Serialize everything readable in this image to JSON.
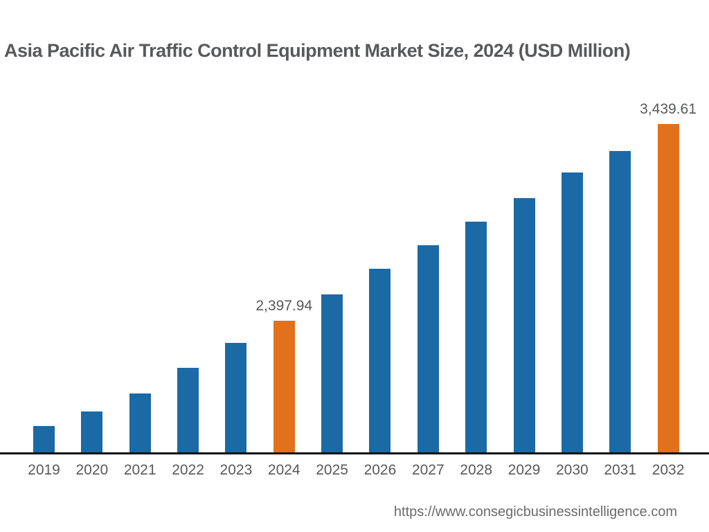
{
  "title": "Asia Pacific Air Traffic Control Equipment Market Size, 2024 (USD Million)",
  "footer": {
    "url": "https://www.consegicbusinessintelligence.com"
  },
  "colors": {
    "bar_default": "#1B6AA5",
    "bar_highlight": "#E2711D",
    "text": "#58595B",
    "axis": "#111111",
    "url_text": "#6A6B6D",
    "background": "#FFFFFF"
  },
  "chart_data": {
    "type": "bar",
    "title": "Asia Pacific Air Traffic Control Equipment Market Size, 2024 (USD Million)",
    "xlabel": "",
    "ylabel": "USD Million",
    "categories": [
      "2019",
      "2020",
      "2021",
      "2022",
      "2023",
      "2024",
      "2025",
      "2026",
      "2027",
      "2028",
      "2029",
      "2030",
      "2031",
      "2032"
    ],
    "values": [
      1840.4,
      1917.4,
      2012.8,
      2148.5,
      2280.5,
      2397.94,
      2537.3,
      2673.0,
      2797.7,
      2922.4,
      3047.1,
      3182.8,
      3296.5,
      3439.61
    ],
    "values_note": "Only 2024 and 2032 carry printed data labels; remaining values estimated from bar heights.",
    "labeled_points": [
      {
        "category": "2024",
        "label": "2,397.94",
        "value": 2397.94
      },
      {
        "category": "2032",
        "label": "3,439.61",
        "value": 3439.61
      }
    ],
    "highlighted_categories": [
      "2024",
      "2032"
    ],
    "ylim": [
      1694,
      3700
    ],
    "grid": false,
    "legend": false,
    "axes_shown": "x-axis line only, no y-axis, no tick marks"
  }
}
